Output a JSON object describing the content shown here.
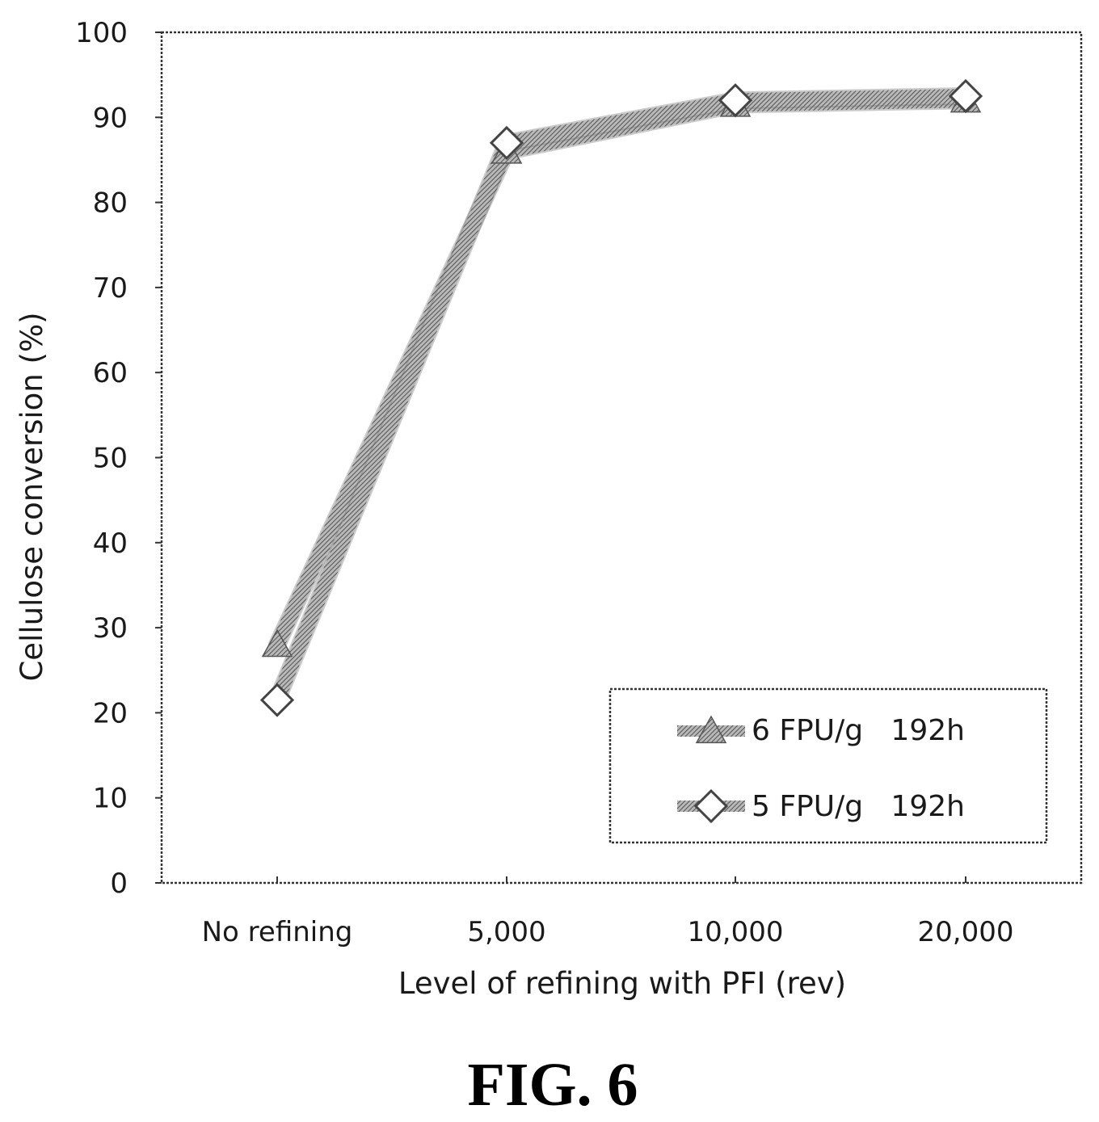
{
  "figure_caption": "FIG. 6",
  "colors": {
    "line": "#7a7a7a",
    "frame": "#333333",
    "text": "#1a1a1a"
  },
  "chart_data": {
    "type": "line",
    "categories": [
      "No refining",
      "5,000",
      "10,000",
      "20,000"
    ],
    "xlabel": "Level of refining with PFI (rev)",
    "ylabel": "Cellulose conversion (%)",
    "ylim": [
      0,
      100
    ],
    "yticks": [
      0,
      10,
      20,
      30,
      40,
      50,
      60,
      70,
      80,
      90,
      100
    ],
    "grid": false,
    "legend_position": "bottom-right",
    "series": [
      {
        "name": "6 FPU/g   192h",
        "marker": "triangle",
        "values": [
          28,
          86,
          91.5,
          92
        ]
      },
      {
        "name": "5 FPU/g   192h",
        "marker": "diamond",
        "values": [
          21.5,
          87,
          92,
          92.5
        ]
      }
    ]
  }
}
